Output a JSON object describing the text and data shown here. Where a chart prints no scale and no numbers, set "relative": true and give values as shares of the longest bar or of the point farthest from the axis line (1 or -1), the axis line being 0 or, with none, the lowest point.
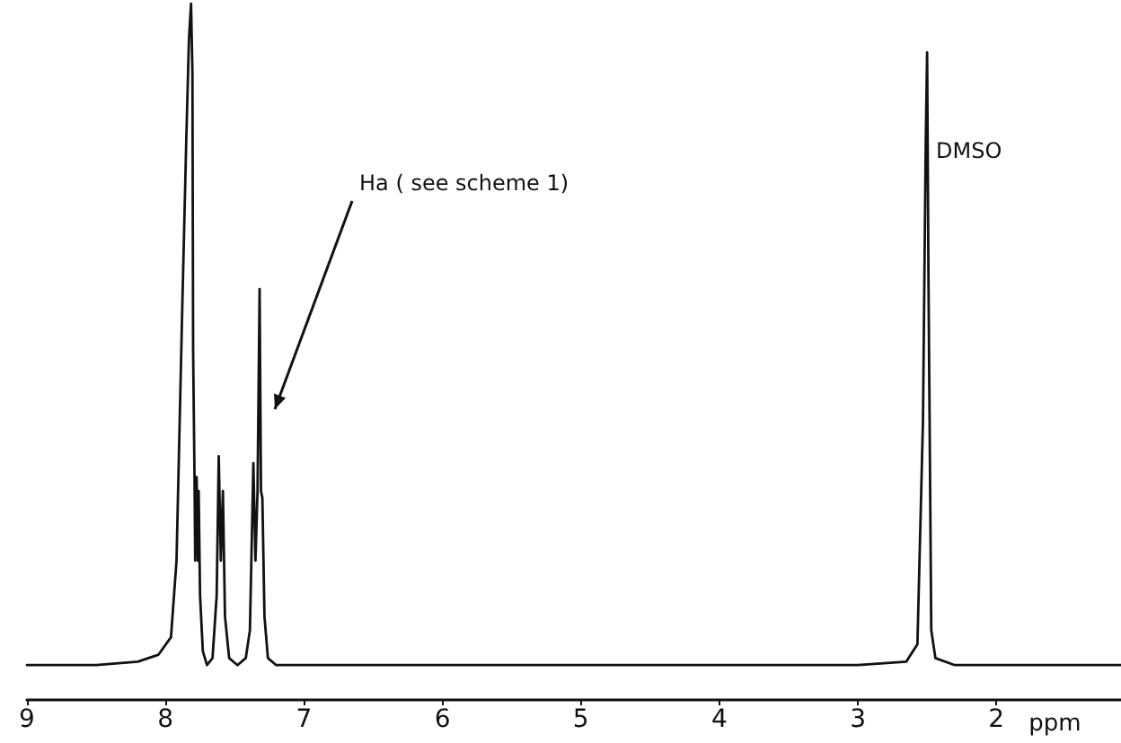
{
  "chart_data": {
    "type": "line",
    "relative": true,
    "xlabel": "ppm",
    "x": [
      9.0,
      8.5,
      8.2,
      8.05,
      7.96,
      7.92,
      7.88,
      7.85,
      7.83,
      7.815,
      7.805,
      7.8,
      7.79,
      7.785,
      7.775,
      7.765,
      7.76,
      7.75,
      7.73,
      7.7,
      7.66,
      7.63,
      7.615,
      7.6,
      7.585,
      7.57,
      7.54,
      7.48,
      7.42,
      7.39,
      7.365,
      7.35,
      7.335,
      7.32,
      7.31,
      7.3,
      7.285,
      7.26,
      7.2,
      6.0,
      5.0,
      4.0,
      3.0,
      2.65,
      2.57,
      2.53,
      2.51,
      2.5,
      2.49,
      2.47,
      2.44,
      2.3,
      2.0,
      1.1
    ],
    "series": [
      {
        "color": "#111111",
        "values": [
          0.05,
          0.05,
          0.055,
          0.065,
          0.09,
          0.2,
          0.55,
          0.8,
          0.95,
          1.0,
          0.9,
          0.5,
          0.32,
          0.2,
          0.32,
          0.2,
          0.3,
          0.15,
          0.07,
          0.05,
          0.06,
          0.15,
          0.35,
          0.2,
          0.3,
          0.12,
          0.06,
          0.05,
          0.06,
          0.1,
          0.34,
          0.2,
          0.3,
          0.59,
          0.3,
          0.29,
          0.12,
          0.06,
          0.05,
          0.05,
          0.05,
          0.05,
          0.05,
          0.055,
          0.08,
          0.4,
          0.8,
          0.93,
          0.6,
          0.1,
          0.06,
          0.05,
          0.05,
          0.05
        ]
      }
    ],
    "xlim": [
      9,
      1.1
    ],
    "xticks": [
      9,
      8,
      7,
      6,
      5,
      4,
      3,
      2
    ],
    "marker": "none",
    "line_style": "solid",
    "grid": false,
    "annotations": [
      "Ha ( see scheme 1)",
      "DMSO"
    ]
  }
}
